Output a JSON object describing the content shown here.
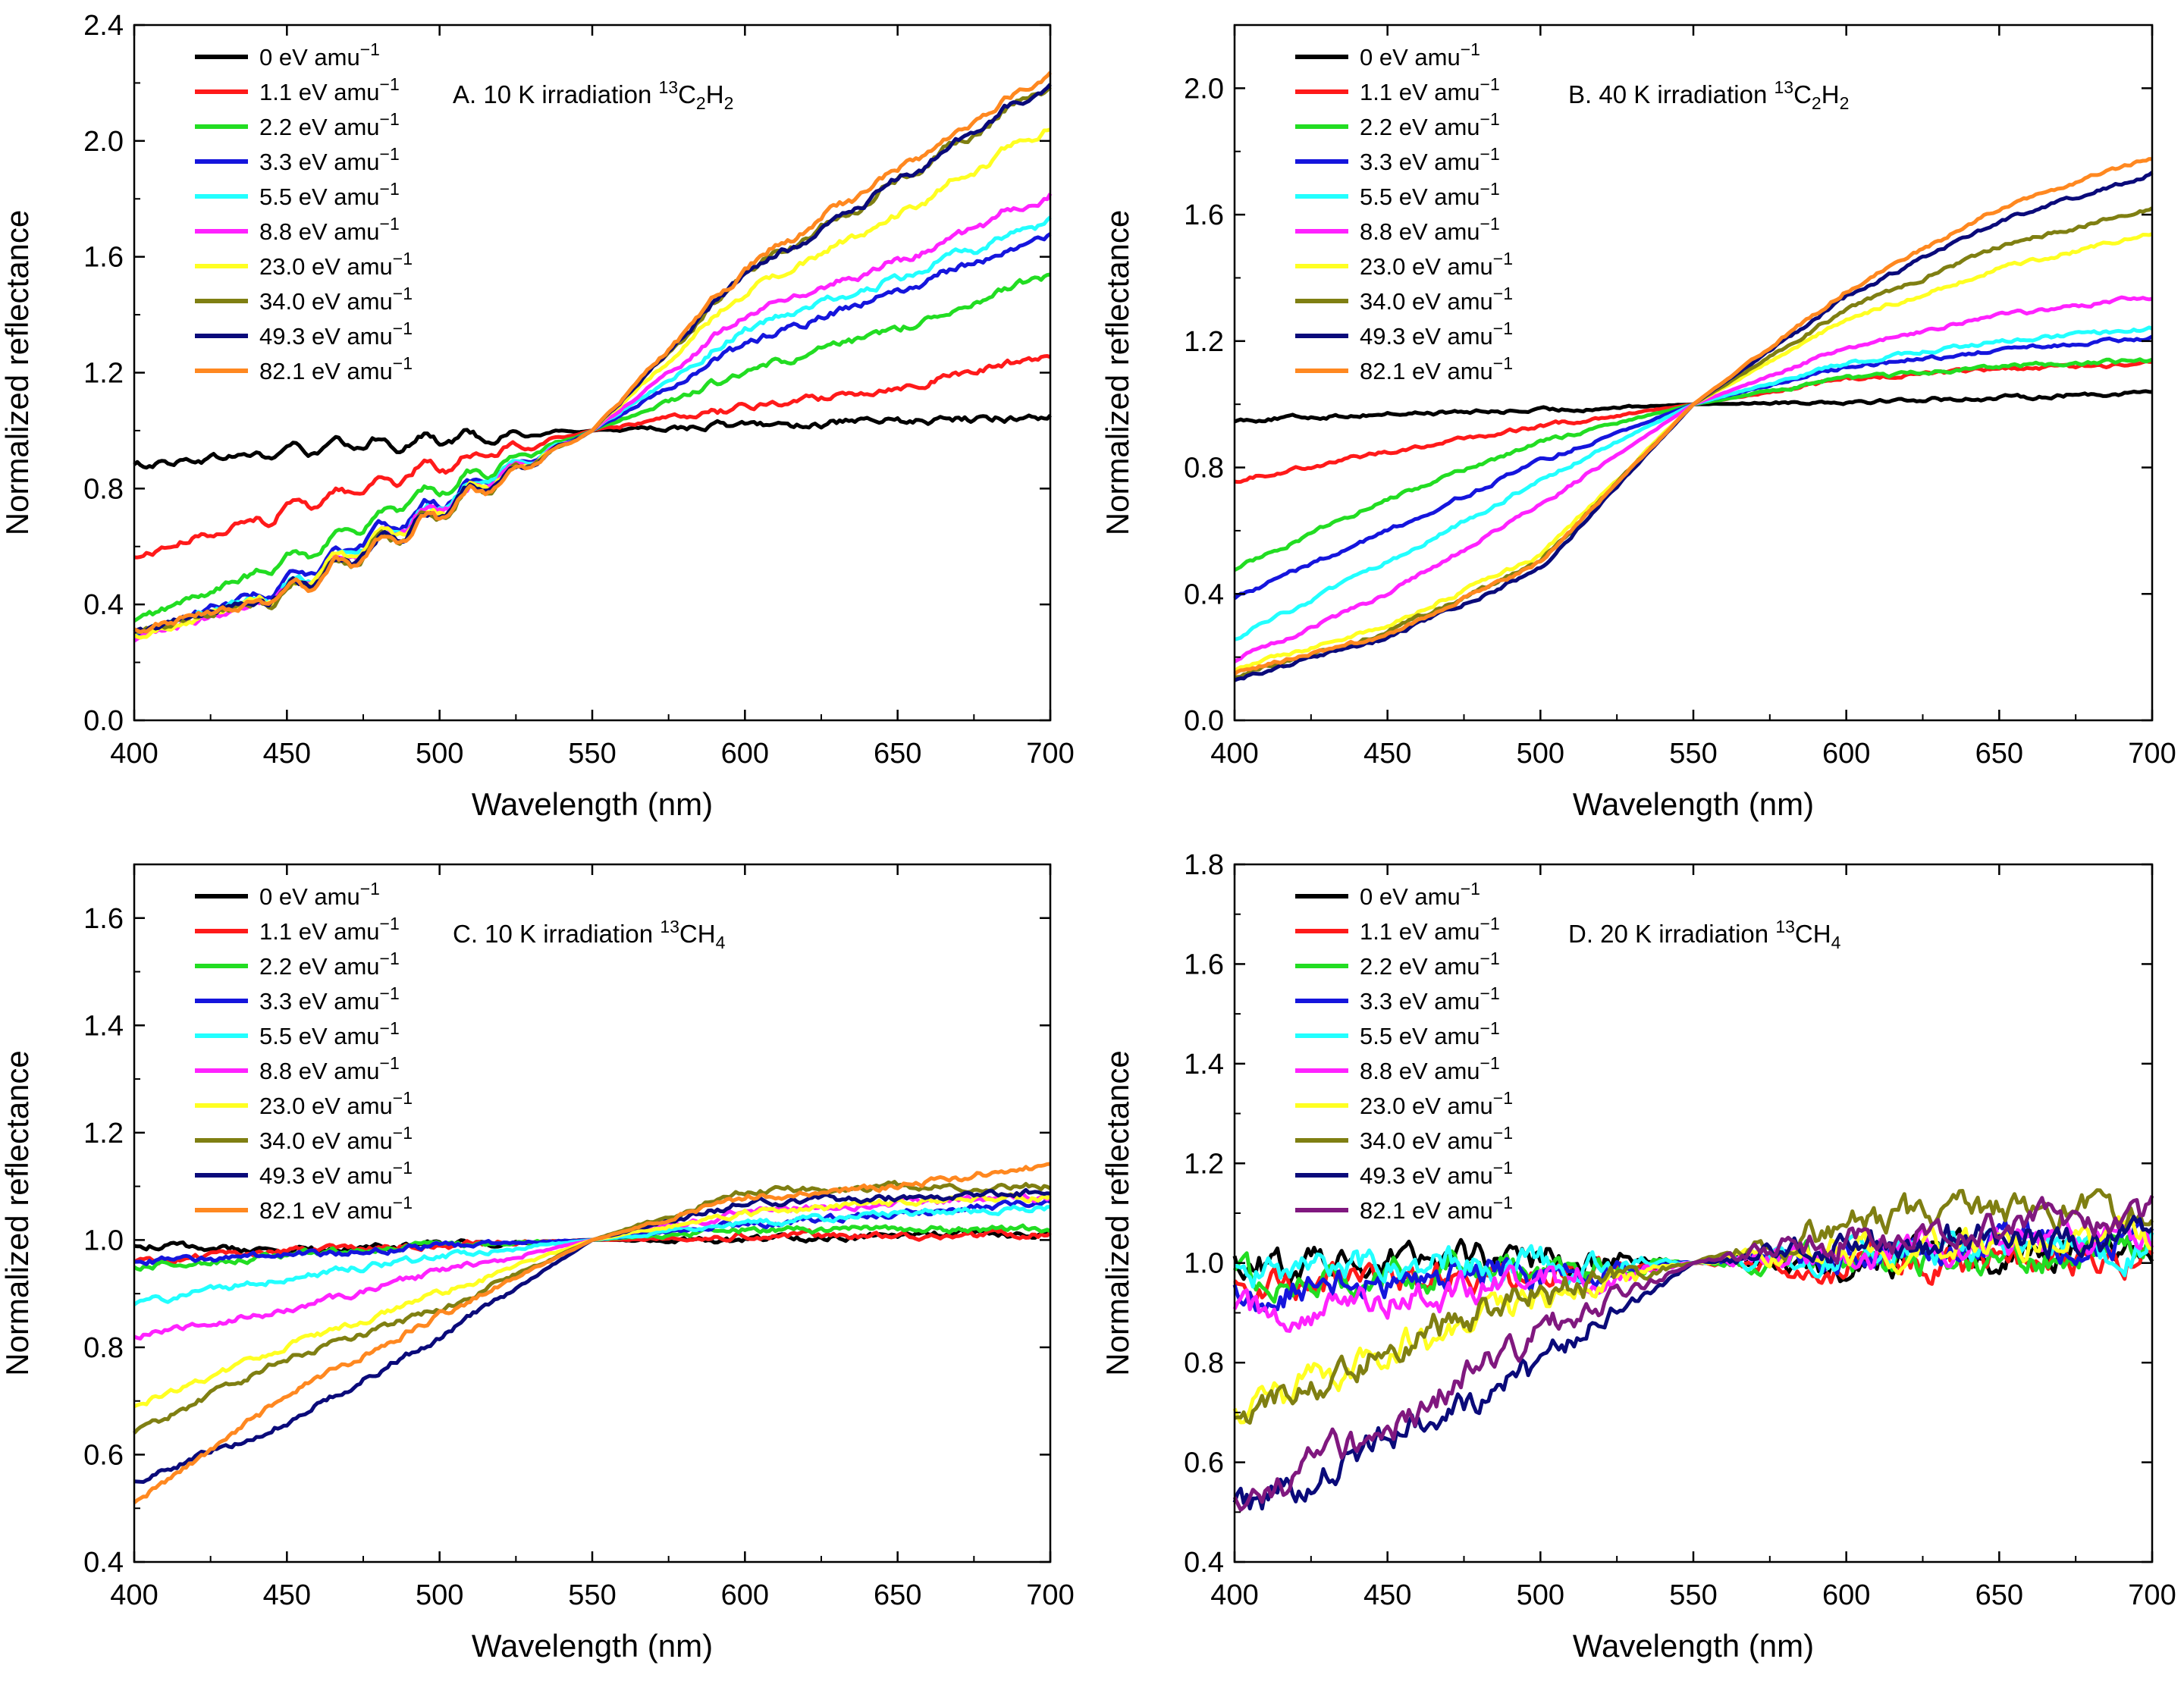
{
  "legend_unit": "eV amu",
  "legend_unit_exp": "−1",
  "colors": {
    "0": "#000000",
    "1.1": "#ff1a1a",
    "2.2": "#22dd22",
    "3.3": "#1515dd",
    "5.5": "#22ffff",
    "8.8": "#ff22ff",
    "23.0": "#ffff22",
    "34.0": "#7f7f12",
    "49.3": "#0a0a7a",
    "82.1_orange": "#ff8820",
    "82.1_purple": "#80187f"
  },
  "chart_data": [
    {
      "id": "A",
      "type": "line",
      "title_pre": "A. 10 K irradiation ",
      "title_iso": "13",
      "title_formula": [
        [
          "C",
          ""
        ],
        [
          "2",
          "sub"
        ],
        [
          "H",
          ""
        ],
        [
          "2",
          "sub"
        ]
      ],
      "xlabel": "Wavelength (nm)",
      "ylabel": "Normalized reflectance",
      "xlim": [
        400,
        700
      ],
      "ylim": [
        0.0,
        2.4
      ],
      "xticks": [
        400,
        450,
        500,
        550,
        600,
        650,
        700
      ],
      "yticks": [
        0.0,
        0.4,
        0.8,
        1.2,
        1.6,
        2.0,
        2.4
      ],
      "tick_decimals": 1,
      "noise": 0.012,
      "ripple": 0.02,
      "series": [
        {
          "name": "0",
          "label": "0",
          "color": "#000000",
          "x": [
            400,
            450,
            500,
            550,
            600,
            650,
            700
          ],
          "y": [
            0.88,
            0.93,
            0.97,
            1.0,
            1.02,
            1.03,
            1.05
          ]
        },
        {
          "name": "1.1",
          "label": "1.1",
          "color": "#ff1a1a",
          "x": [
            400,
            450,
            500,
            550,
            600,
            650,
            700
          ],
          "y": [
            0.56,
            0.73,
            0.88,
            1.0,
            1.08,
            1.15,
            1.26
          ]
        },
        {
          "name": "2.2",
          "label": "2.2",
          "color": "#22dd22",
          "x": [
            400,
            450,
            500,
            550,
            600,
            650,
            700
          ],
          "y": [
            0.34,
            0.55,
            0.8,
            1.0,
            1.2,
            1.35,
            1.54
          ]
        },
        {
          "name": "3.3",
          "label": "3.3",
          "color": "#1515dd",
          "x": [
            400,
            450,
            500,
            550,
            600,
            650,
            700
          ],
          "y": [
            0.3,
            0.47,
            0.76,
            1.0,
            1.3,
            1.48,
            1.68
          ]
        },
        {
          "name": "5.5",
          "label": "5.5",
          "color": "#22ffff",
          "x": [
            400,
            450,
            500,
            550,
            600,
            650,
            700
          ],
          "y": [
            0.3,
            0.46,
            0.75,
            1.0,
            1.35,
            1.52,
            1.73
          ]
        },
        {
          "name": "8.8",
          "label": "8.8",
          "color": "#ff22ff",
          "x": [
            400,
            450,
            500,
            550,
            600,
            650,
            700
          ],
          "y": [
            0.27,
            0.45,
            0.74,
            1.0,
            1.4,
            1.58,
            1.82
          ]
        },
        {
          "name": "23.0",
          "label": "23.0",
          "color": "#ffff22",
          "x": [
            400,
            450,
            500,
            550,
            600,
            650,
            700
          ],
          "y": [
            0.29,
            0.45,
            0.73,
            1.0,
            1.48,
            1.74,
            2.05
          ]
        },
        {
          "name": "34.0",
          "label": "34.0",
          "color": "#7f7f12",
          "x": [
            400,
            450,
            500,
            550,
            600,
            650,
            700
          ],
          "y": [
            0.3,
            0.44,
            0.72,
            1.0,
            1.54,
            1.86,
            2.2
          ]
        },
        {
          "name": "49.3",
          "label": "49.3",
          "color": "#0a0a7a",
          "x": [
            400,
            450,
            500,
            550,
            600,
            650,
            700
          ],
          "y": [
            0.3,
            0.44,
            0.72,
            1.0,
            1.54,
            1.86,
            2.2
          ]
        },
        {
          "name": "82.1",
          "label": "82.1",
          "color": "#ff8820",
          "x": [
            400,
            450,
            500,
            550,
            600,
            650,
            700
          ],
          "y": [
            0.31,
            0.43,
            0.71,
            1.0,
            1.56,
            1.9,
            2.23
          ]
        }
      ]
    },
    {
      "id": "B",
      "type": "line",
      "title_pre": "B. 40 K irradiation ",
      "title_iso": "13",
      "title_formula": [
        [
          "C",
          ""
        ],
        [
          "2",
          "sub"
        ],
        [
          "H",
          ""
        ],
        [
          "2",
          "sub"
        ]
      ],
      "xlabel": "Wavelength (nm)",
      "ylabel": "Normalized reflectance",
      "xlim": [
        400,
        700
      ],
      "ylim": [
        0.0,
        2.2
      ],
      "xticks": [
        400,
        450,
        500,
        550,
        600,
        650,
        700
      ],
      "yticks": [
        0.0,
        0.4,
        0.8,
        1.2,
        1.6,
        2.0
      ],
      "tick_decimals": 1,
      "noise": 0.006,
      "ripple": 0.0,
      "series": [
        {
          "name": "0",
          "label": "0",
          "color": "#000000",
          "x": [
            400,
            450,
            500,
            550,
            600,
            650,
            700
          ],
          "y": [
            0.95,
            0.97,
            0.98,
            1.0,
            1.01,
            1.02,
            1.04
          ]
        },
        {
          "name": "1.1",
          "label": "1.1",
          "color": "#ff1a1a",
          "x": [
            400,
            450,
            500,
            550,
            600,
            650,
            700
          ],
          "y": [
            0.76,
            0.85,
            0.93,
            1.0,
            1.08,
            1.11,
            1.13
          ]
        },
        {
          "name": "2.2",
          "label": "2.2",
          "color": "#22dd22",
          "x": [
            400,
            450,
            500,
            550,
            600,
            650,
            700
          ],
          "y": [
            0.48,
            0.7,
            0.88,
            1.0,
            1.08,
            1.12,
            1.14
          ]
        },
        {
          "name": "3.3",
          "label": "3.3",
          "color": "#1515dd",
          "x": [
            400,
            450,
            500,
            550,
            600,
            650,
            700
          ],
          "y": [
            0.39,
            0.6,
            0.82,
            1.0,
            1.12,
            1.17,
            1.21
          ]
        },
        {
          "name": "5.5",
          "label": "5.5",
          "color": "#22ffff",
          "x": [
            400,
            450,
            500,
            550,
            600,
            650,
            700
          ],
          "y": [
            0.26,
            0.5,
            0.76,
            1.0,
            1.13,
            1.2,
            1.24
          ]
        },
        {
          "name": "8.8",
          "label": "8.8",
          "color": "#ff22ff",
          "x": [
            400,
            450,
            500,
            550,
            600,
            650,
            700
          ],
          "y": [
            0.19,
            0.4,
            0.68,
            1.0,
            1.18,
            1.28,
            1.34
          ]
        },
        {
          "name": "23.0",
          "label": "23.0",
          "color": "#ffff22",
          "x": [
            400,
            450,
            500,
            550,
            600,
            650,
            700
          ],
          "y": [
            0.16,
            0.3,
            0.52,
            1.0,
            1.27,
            1.43,
            1.54
          ]
        },
        {
          "name": "34.0",
          "label": "34.0",
          "color": "#7f7f12",
          "x": [
            400,
            450,
            500,
            550,
            600,
            650,
            700
          ],
          "y": [
            0.14,
            0.28,
            0.5,
            1.0,
            1.3,
            1.5,
            1.62
          ]
        },
        {
          "name": "49.3",
          "label": "49.3",
          "color": "#0a0a7a",
          "x": [
            400,
            450,
            500,
            550,
            600,
            650,
            700
          ],
          "y": [
            0.13,
            0.26,
            0.48,
            1.0,
            1.34,
            1.58,
            1.73
          ]
        },
        {
          "name": "82.1",
          "label": "82.1",
          "color": "#ff8820",
          "x": [
            400,
            450,
            500,
            550,
            600,
            650,
            700
          ],
          "y": [
            0.15,
            0.27,
            0.5,
            1.0,
            1.36,
            1.62,
            1.78
          ]
        }
      ]
    },
    {
      "id": "C",
      "type": "line",
      "title_pre": "C. 10 K irradiation ",
      "title_iso": "13",
      "title_formula": [
        [
          "CH",
          ""
        ],
        [
          "4",
          "sub"
        ]
      ],
      "xlabel": "Wavelength (nm)",
      "ylabel": "Normalized reflectance",
      "xlim": [
        400,
        700
      ],
      "ylim": [
        0.4,
        1.7
      ],
      "xticks": [
        400,
        450,
        500,
        550,
        600,
        650,
        700
      ],
      "yticks": [
        0.4,
        0.6,
        0.8,
        1.0,
        1.2,
        1.4,
        1.6
      ],
      "tick_decimals": 1,
      "noise": 0.006,
      "ripple": 0.0,
      "series": [
        {
          "name": "0",
          "label": "0",
          "color": "#000000",
          "x": [
            400,
            450,
            500,
            550,
            600,
            650,
            700
          ],
          "y": [
            0.99,
            0.98,
            0.99,
            1.0,
            1.0,
            1.01,
            1.01
          ]
        },
        {
          "name": "1.1",
          "label": "1.1",
          "color": "#ff1a1a",
          "x": [
            400,
            450,
            500,
            550,
            600,
            650,
            700
          ],
          "y": [
            0.96,
            0.98,
            0.99,
            1.0,
            1.01,
            1.01,
            1.01
          ]
        },
        {
          "name": "2.2",
          "label": "2.2",
          "color": "#22dd22",
          "x": [
            400,
            450,
            500,
            550,
            600,
            650,
            700
          ],
          "y": [
            0.95,
            0.97,
            0.99,
            1.0,
            1.02,
            1.02,
            1.02
          ]
        },
        {
          "name": "3.3",
          "label": "3.3",
          "color": "#1515dd",
          "x": [
            400,
            450,
            500,
            550,
            600,
            650,
            700
          ],
          "y": [
            0.96,
            0.97,
            0.99,
            1.0,
            1.03,
            1.05,
            1.07
          ]
        },
        {
          "name": "5.5",
          "label": "5.5",
          "color": "#22ffff",
          "x": [
            400,
            450,
            500,
            550,
            600,
            650,
            700
          ],
          "y": [
            0.88,
            0.93,
            0.97,
            1.0,
            1.03,
            1.05,
            1.06
          ]
        },
        {
          "name": "8.8",
          "label": "8.8",
          "color": "#ff22ff",
          "x": [
            400,
            450,
            500,
            550,
            600,
            650,
            700
          ],
          "y": [
            0.82,
            0.87,
            0.94,
            1.0,
            1.05,
            1.07,
            1.08
          ]
        },
        {
          "name": "23.0",
          "label": "23.0",
          "color": "#ffff22",
          "x": [
            400,
            450,
            500,
            550,
            600,
            650,
            700
          ],
          "y": [
            0.69,
            0.8,
            0.9,
            1.0,
            1.05,
            1.07,
            1.08
          ]
        },
        {
          "name": "34.0",
          "label": "34.0",
          "color": "#7f7f12",
          "x": [
            400,
            450,
            500,
            550,
            600,
            650,
            700
          ],
          "y": [
            0.64,
            0.78,
            0.87,
            1.0,
            1.09,
            1.1,
            1.1
          ]
        },
        {
          "name": "49.3",
          "label": "49.3",
          "color": "#0a0a7a",
          "x": [
            400,
            450,
            500,
            550,
            600,
            650,
            700
          ],
          "y": [
            0.55,
            0.66,
            0.82,
            1.0,
            1.07,
            1.08,
            1.09
          ]
        },
        {
          "name": "82.1",
          "label": "82.1",
          "color": "#ff8820",
          "x": [
            400,
            450,
            500,
            550,
            600,
            650,
            700
          ],
          "y": [
            0.51,
            0.71,
            0.86,
            1.0,
            1.08,
            1.1,
            1.14
          ]
        }
      ]
    },
    {
      "id": "D",
      "type": "line",
      "title_pre": "D. 20 K irradiation ",
      "title_iso": "13",
      "title_formula": [
        [
          "CH",
          ""
        ],
        [
          "4",
          "sub"
        ]
      ],
      "xlabel": "Wavelength (nm)",
      "ylabel": "Normalized reflectance",
      "xlim": [
        400,
        700
      ],
      "ylim": [
        0.4,
        1.8
      ],
      "xticks": [
        400,
        450,
        500,
        550,
        600,
        650,
        700
      ],
      "yticks": [
        0.4,
        0.6,
        0.8,
        1.0,
        1.2,
        1.4,
        1.6,
        1.8
      ],
      "tick_decimals": 1,
      "noise": 0.03,
      "ripple": 0.0,
      "series": [
        {
          "name": "0",
          "label": "0",
          "color": "#000000",
          "x": [
            400,
            450,
            500,
            550,
            600,
            650,
            700
          ],
          "y": [
            1.0,
            1.01,
            1.01,
            1.0,
            1.0,
            1.02,
            1.03
          ]
        },
        {
          "name": "1.1",
          "label": "1.1",
          "color": "#ff1a1a",
          "x": [
            400,
            450,
            500,
            550,
            600,
            650,
            700
          ],
          "y": [
            0.95,
            0.97,
            0.98,
            1.0,
            1.0,
            1.0,
            1.02
          ]
        },
        {
          "name": "2.2",
          "label": "2.2",
          "color": "#22dd22",
          "x": [
            400,
            450,
            500,
            550,
            600,
            650,
            700
          ],
          "y": [
            0.97,
            0.98,
            0.99,
            1.0,
            1.0,
            1.01,
            1.03
          ]
        },
        {
          "name": "3.3",
          "label": "3.3",
          "color": "#1515dd",
          "x": [
            400,
            450,
            500,
            550,
            600,
            650,
            700
          ],
          "y": [
            0.94,
            0.96,
            0.98,
            1.0,
            1.02,
            1.04,
            1.05
          ]
        },
        {
          "name": "5.5",
          "label": "5.5",
          "color": "#22ffff",
          "x": [
            400,
            450,
            500,
            550,
            600,
            650,
            700
          ],
          "y": [
            0.98,
            1.0,
            1.0,
            1.0,
            1.01,
            1.02,
            1.03
          ]
        },
        {
          "name": "8.8",
          "label": "8.8",
          "color": "#ff22ff",
          "x": [
            400,
            450,
            500,
            550,
            600,
            650,
            700
          ],
          "y": [
            0.89,
            0.92,
            0.96,
            1.0,
            1.02,
            1.04,
            1.06
          ]
        },
        {
          "name": "23.0",
          "label": "23.0",
          "color": "#ffff22",
          "x": [
            400,
            450,
            500,
            550,
            600,
            650,
            700
          ],
          "y": [
            0.69,
            0.82,
            0.92,
            1.0,
            1.03,
            1.04,
            1.05
          ]
        },
        {
          "name": "34.0",
          "label": "34.0",
          "color": "#7f7f12",
          "x": [
            400,
            450,
            500,
            550,
            600,
            650,
            700
          ],
          "y": [
            0.67,
            0.84,
            0.94,
            1.0,
            1.08,
            1.11,
            1.1
          ]
        },
        {
          "name": "49.3",
          "label": "49.3",
          "color": "#0a0a7a",
          "x": [
            400,
            450,
            500,
            550,
            600,
            650,
            700
          ],
          "y": [
            0.5,
            0.64,
            0.8,
            1.0,
            1.04,
            1.05,
            1.05
          ]
        },
        {
          "name": "82.1",
          "label": "82.1",
          "color": "#80187f",
          "x": [
            400,
            450,
            500,
            550,
            600,
            650,
            700
          ],
          "y": [
            0.51,
            0.67,
            0.86,
            1.0,
            1.05,
            1.07,
            1.1
          ]
        }
      ]
    }
  ]
}
